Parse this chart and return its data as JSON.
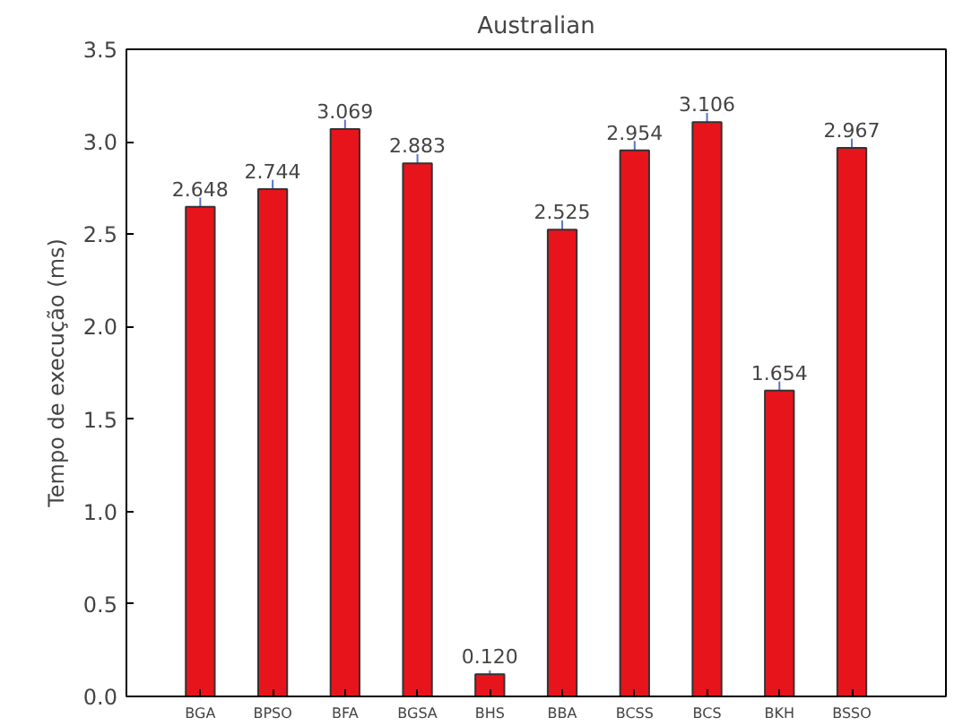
{
  "chart_data": {
    "type": "bar",
    "title": "Australian",
    "ylabel": "Tempo de execução (ms)",
    "categories": [
      "BGA",
      "BPSO",
      "BFA",
      "BGSA",
      "BHS",
      "BBA",
      "BCSS",
      "BCS",
      "BKH",
      "BSSO"
    ],
    "values": [
      2.648,
      2.744,
      3.069,
      2.883,
      0.12,
      2.525,
      2.954,
      3.106,
      1.654,
      2.967
    ],
    "errors": [
      0.05,
      0.05,
      0.05,
      0.05,
      0.02,
      0.05,
      0.05,
      0.05,
      0.05,
      0.05
    ],
    "color": "#e8141c",
    "grid": false,
    "value_labels": [
      "2.648",
      "2.744",
      "3.069",
      "2.883",
      "0.120",
      "2.525",
      "2.954",
      "3.106",
      "1.654",
      "2.967"
    ],
    "ylim": [
      0,
      3.5
    ],
    "yticks": [
      {
        "value": 0,
        "label": "0.0"
      },
      {
        "value": 0.5,
        "label": "0.5"
      },
      {
        "value": 1,
        "label": "1.0"
      },
      {
        "value": 1.5,
        "label": "1.5"
      },
      {
        "value": 2,
        "label": "2.0"
      },
      {
        "value": 2.5,
        "label": "2.5"
      },
      {
        "value": 3,
        "label": "3.0"
      },
      {
        "value": 3.5,
        "label": "3.5"
      }
    ]
  }
}
